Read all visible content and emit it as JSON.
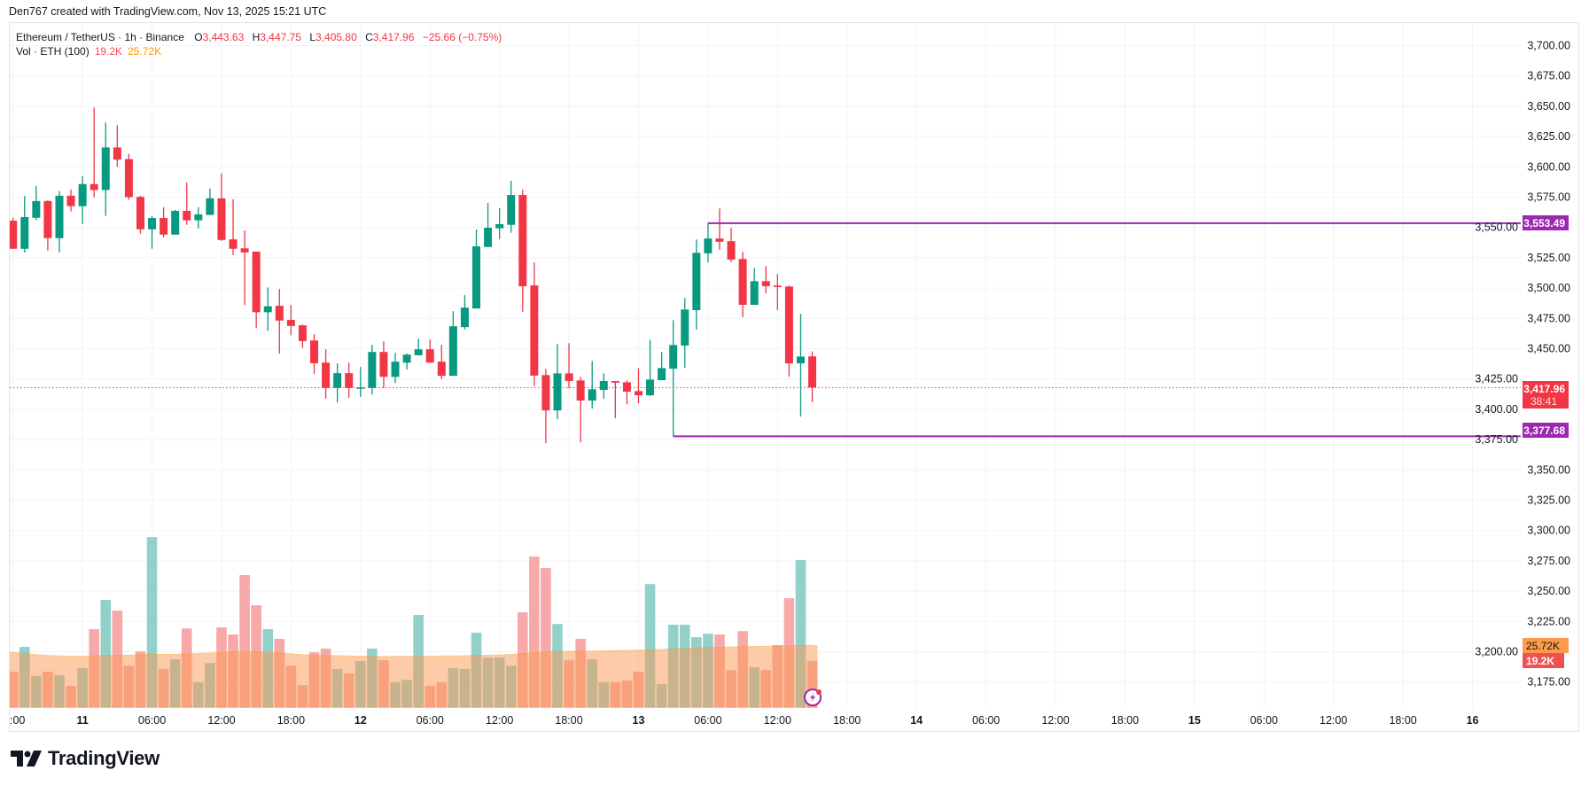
{
  "credit": "Den767 created with TradingView.com, Nov 13, 2025 15:21 UTC",
  "legend": {
    "symbol": "Ethereum / TetherUS · 1h · Binance",
    "o_label": "O",
    "o": "3,443.63",
    "h_label": "H",
    "h": "3,447.75",
    "l_label": "L",
    "l": "3,405.80",
    "c_label": "C",
    "c": "3,417.96",
    "change": "−25.66 (−0.75%)",
    "vol_label": "Vol · ETH (100)",
    "vol_value": "19.2K",
    "vol_ma": "25.72K"
  },
  "price_axis": {
    "ticks": [
      "3,700.00",
      "3,675.00",
      "3,650.00",
      "3,625.00",
      "3,600.00",
      "3,575.00",
      "3,550.00",
      "3,525.00",
      "3,500.00",
      "3,475.00",
      "3,450.00",
      "3,425.00",
      "3,400.00",
      "3,375.00",
      "3,350.00",
      "3,325.00",
      "3,300.00",
      "3,275.00",
      "3,250.00",
      "3,225.00",
      "3,200.00",
      "3,175.00"
    ],
    "current_price": "3,417.96",
    "countdown": "38:41",
    "level_high": "3,553.49",
    "level_low": "3,377.68",
    "vol_ma_label": "25.72K",
    "vol_label": "19.2K"
  },
  "time_axis": {
    "ticks": [
      ":00",
      "11",
      "06:00",
      "12:00",
      "18:00",
      "12",
      "06:00",
      "12:00",
      "18:00",
      "13",
      "06:00",
      "12:00",
      "18:00",
      "14",
      "06:00",
      "12:00",
      "18:00",
      "15",
      "06:00",
      "12:00",
      "18:00",
      "16"
    ]
  },
  "colors": {
    "up": "#089981",
    "down": "#f23645",
    "level": "#9c27b0",
    "vol_up": "#92d1ca",
    "vol_down": "#f7a9a9",
    "vol_ma": "#ff9800"
  },
  "brand": "TradingView",
  "chart_data": {
    "type": "candlestick",
    "interval": "1h",
    "price_range": [
      3175,
      3700
    ],
    "levels": [
      {
        "price": 3553.49,
        "from": "13 06:00"
      },
      {
        "price": 3377.68,
        "from": "13 03:00"
      }
    ],
    "current_price": 3417.96,
    "t": [
      "10 18:00",
      "10 19:00",
      "10 20:00",
      "10 21:00",
      "10 22:00",
      "10 23:00",
      "11 00:00",
      "11 01:00",
      "11 02:00",
      "11 03:00",
      "11 04:00",
      "11 05:00",
      "11 06:00",
      "11 07:00",
      "11 08:00",
      "11 09:00",
      "11 10:00",
      "11 11:00",
      "11 12:00",
      "11 13:00",
      "11 14:00",
      "11 15:00",
      "11 16:00",
      "11 17:00",
      "11 18:00",
      "11 19:00",
      "11 20:00",
      "11 21:00",
      "11 22:00",
      "11 23:00",
      "12 00:00",
      "12 01:00",
      "12 02:00",
      "12 03:00",
      "12 04:00",
      "12 05:00",
      "12 06:00",
      "12 07:00",
      "12 08:00",
      "12 09:00",
      "12 10:00",
      "12 11:00",
      "12 12:00",
      "12 13:00",
      "12 14:00",
      "12 15:00",
      "12 16:00",
      "12 17:00",
      "12 18:00",
      "12 19:00",
      "12 20:00",
      "12 21:00",
      "12 22:00",
      "12 23:00",
      "13 00:00",
      "13 01:00",
      "13 02:00",
      "13 03:00",
      "13 04:00",
      "13 05:00",
      "13 06:00",
      "13 07:00",
      "13 08:00",
      "13 09:00",
      "13 10:00",
      "13 11:00",
      "13 12:00",
      "13 13:00",
      "13 14:00",
      "13 15:00"
    ],
    "ohlc": [
      [
        3555.6,
        3558,
        3532.4,
        3532.4
      ],
      [
        3532.4,
        3576,
        3529.4,
        3558.6
      ],
      [
        3558,
        3584.3,
        3556,
        3571.8
      ],
      [
        3571.8,
        3572.5,
        3530.9,
        3541.2
      ],
      [
        3541.2,
        3580,
        3529.4,
        3576.2
      ],
      [
        3576.2,
        3581.4,
        3563.2,
        3567.6
      ],
      [
        3567.6,
        3592.4,
        3552.9,
        3585.8
      ],
      [
        3585.8,
        3649,
        3575,
        3580.9
      ],
      [
        3580.9,
        3636.5,
        3559.6,
        3616
      ],
      [
        3616,
        3634.3,
        3600,
        3605.9
      ],
      [
        3606.4,
        3610.8,
        3572.8,
        3575
      ],
      [
        3575.2,
        3576.2,
        3544.9,
        3548.5
      ],
      [
        3548.5,
        3559.3,
        3532.4,
        3557.8
      ],
      [
        3557.8,
        3566.7,
        3541.9,
        3544.1
      ],
      [
        3544.1,
        3564.5,
        3544.1,
        3563.7
      ],
      [
        3563.7,
        3587.3,
        3552.2,
        3555.9
      ],
      [
        3555.9,
        3566.7,
        3549.3,
        3560.8
      ],
      [
        3560.3,
        3582.1,
        3560.3,
        3574
      ],
      [
        3574,
        3594.6,
        3539,
        3539.7
      ],
      [
        3540.2,
        3573.3,
        3527.2,
        3532.4
      ],
      [
        3532.8,
        3547.5,
        3486,
        3529.4
      ],
      [
        3530.1,
        3530.1,
        3466.9,
        3480.1
      ],
      [
        3480.1,
        3500.5,
        3464.7,
        3485
      ],
      [
        3485.4,
        3499.3,
        3446,
        3473.2
      ],
      [
        3473.7,
        3486,
        3461,
        3468.8
      ],
      [
        3469.3,
        3469.8,
        3450.5,
        3456.3
      ],
      [
        3456.8,
        3462,
        3429.3,
        3438
      ],
      [
        3438.5,
        3449.5,
        3408.8,
        3417.6
      ],
      [
        3417.6,
        3437.8,
        3405.6,
        3429.8
      ],
      [
        3429.8,
        3438.5,
        3409.5,
        3417.6
      ],
      [
        3417.6,
        3434.9,
        3410.2,
        3418
      ],
      [
        3417.6,
        3453.2,
        3412.2,
        3447.3
      ],
      [
        3447.3,
        3456.1,
        3417.6,
        3426.8
      ],
      [
        3426.8,
        3446.6,
        3421.7,
        3439.3
      ],
      [
        3438.5,
        3445.9,
        3432.9,
        3445.1
      ],
      [
        3444.6,
        3458.3,
        3444.6,
        3449.5
      ],
      [
        3449.5,
        3457.6,
        3438.5,
        3438.5
      ],
      [
        3439.3,
        3453.2,
        3424.9,
        3427.6
      ],
      [
        3427.6,
        3481,
        3427.6,
        3468.5
      ],
      [
        3467.8,
        3494.1,
        3465.9,
        3483.9
      ],
      [
        3483.2,
        3548.3,
        3483.2,
        3534.4
      ],
      [
        3533.9,
        3570.2,
        3533.9,
        3549.8
      ],
      [
        3549.3,
        3565.9,
        3540.5,
        3552.7
      ],
      [
        3552.2,
        3588.5,
        3545.6,
        3576.8
      ],
      [
        3576.8,
        3581.2,
        3480.5,
        3501.5
      ],
      [
        3502.2,
        3521.2,
        3419,
        3427.8
      ],
      [
        3428.2,
        3433.3,
        3372,
        3399.1
      ],
      [
        3399.1,
        3453.8,
        3391.8,
        3429.6
      ],
      [
        3429.6,
        3454.5,
        3417.4,
        3423.3
      ],
      [
        3423.8,
        3426.7,
        3372.8,
        3407.2
      ],
      [
        3407.2,
        3439.9,
        3400.6,
        3416.5
      ],
      [
        3416,
        3429.6,
        3408.7,
        3423.3
      ],
      [
        3423.3,
        3423.3,
        3392.6,
        3422
      ],
      [
        3422.3,
        3423.8,
        3404,
        3414.5
      ],
      [
        3415,
        3434,
        3405,
        3411.6
      ],
      [
        3411.6,
        3457.4,
        3410.9,
        3424.5
      ],
      [
        3424,
        3447.2,
        3424,
        3434
      ],
      [
        3433.5,
        3473.5,
        3377.68,
        3453
      ],
      [
        3452.6,
        3491.8,
        3434.3,
        3482.3
      ],
      [
        3481.8,
        3540.1,
        3465.7,
        3529.1
      ],
      [
        3528.7,
        3553.49,
        3521.3,
        3540.9
      ],
      [
        3540.9,
        3565.7,
        3531.6,
        3538.2
      ],
      [
        3538.7,
        3549.6,
        3521.3,
        3523.5
      ],
      [
        3524,
        3529.9,
        3476,
        3486.2
      ],
      [
        3486.2,
        3516.7,
        3486.2,
        3505.7
      ],
      [
        3505.7,
        3518.2,
        3495.7,
        3501.6
      ],
      [
        3502.1,
        3511.6,
        3481.8,
        3500.9
      ],
      [
        3501.3,
        3502.1,
        3427,
        3437.9
      ],
      [
        3437.9,
        3478.7,
        3394,
        3443.5
      ],
      [
        3443.63,
        3447.75,
        3405.8,
        3417.96
      ]
    ],
    "volume_k": [
      14.8,
      25.0,
      13.0,
      14.8,
      13.3,
      9.0,
      16.3,
      32.3,
      44.3,
      39.9,
      17.3,
      23.2,
      70.1,
      15.9,
      19.9,
      32.6,
      10.4,
      18.4,
      33.0,
      30.1,
      54.5,
      42.1,
      32.3,
      28.3,
      17.3,
      9.3,
      22.8,
      24.3,
      15.9,
      14.1,
      19.2,
      24.3,
      19.5,
      10.4,
      11.5,
      38.1,
      9.0,
      10.4,
      16.3,
      15.9,
      30.8,
      20.6,
      20.6,
      17.3,
      39.2,
      62.1,
      57.4,
      34.4,
      19.5,
      28.3,
      19.9,
      10.4,
      10.4,
      11.2,
      14.8,
      50.8,
      9.7,
      34.1,
      34.1,
      29.0,
      30.4,
      30.1,
      15.5,
      31.5,
      16.6,
      15.5,
      25.7,
      45.0,
      60.7,
      19.2
    ],
    "volume_ma_k": [
      22.8,
      22.3,
      21.8,
      21.5,
      21.3,
      21.2,
      21.2,
      21.3,
      21.5,
      21.6,
      21.6,
      21.8,
      21.9,
      22,
      22,
      22.1,
      22.3,
      22.5,
      22.8,
      23,
      23,
      23,
      22.9,
      22.6,
      22.2,
      21.8,
      21.6,
      21.5,
      21.4,
      21.3,
      21.2,
      21.2,
      21.1,
      21.1,
      21.1,
      21.1,
      21.2,
      21.3,
      21.3,
      21.4,
      21.5,
      21.6,
      21.7,
      21.9,
      22.3,
      22.7,
      23.0,
      23.1,
      23.2,
      23.3,
      23.3,
      23.4,
      23.5,
      23.6,
      23.7,
      23.8,
      24.0,
      24.2,
      24.4,
      24.6,
      24.8,
      24.9,
      25.0,
      25.1,
      25.2,
      25.3,
      25.4,
      25.5,
      25.6,
      25.72
    ]
  }
}
